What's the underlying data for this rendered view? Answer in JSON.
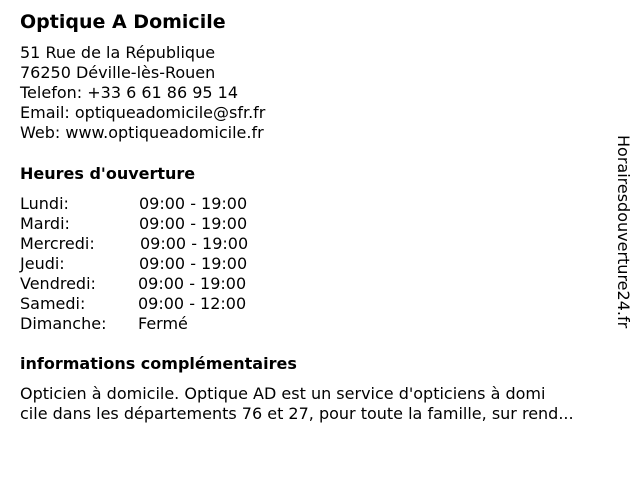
{
  "business": {
    "name": "Optique A Domicile",
    "address_line1": "51 Rue de la République",
    "address_line2": "76250 Déville-lès-Rouen",
    "phone": "Telefon: +33 6 61 86 95 14",
    "email": "Email: optiqueadomicile@sfr.fr",
    "web": "Web: www.optiqueadomicile.fr"
  },
  "hours": {
    "heading": "Heures d'ouverture",
    "rows": [
      {
        "day": "Lundi:",
        "time": "09:00 - 19:00"
      },
      {
        "day": "Mardi:",
        "time": "09:00 - 19:00"
      },
      {
        "day": "Mercredi:",
        "time": "09:00 - 19:00"
      },
      {
        "day": "Jeudi:",
        "time": "09:00 - 19:00"
      },
      {
        "day": "Vendredi:",
        "time": "09:00 - 19:00"
      },
      {
        "day": "Samedi:",
        "time": "09:00 - 12:00"
      },
      {
        "day": "Dimanche:",
        "time": "Fermé"
      }
    ]
  },
  "info": {
    "heading": "informations complémentaires",
    "line1": "Opticien à domicile. Optique AD est un service d'opticiens à domi",
    "line2": "cile dans les départements 76 et 27, pour toute la famille, sur rend..."
  },
  "watermark": "Horairesdouverture24.fr"
}
